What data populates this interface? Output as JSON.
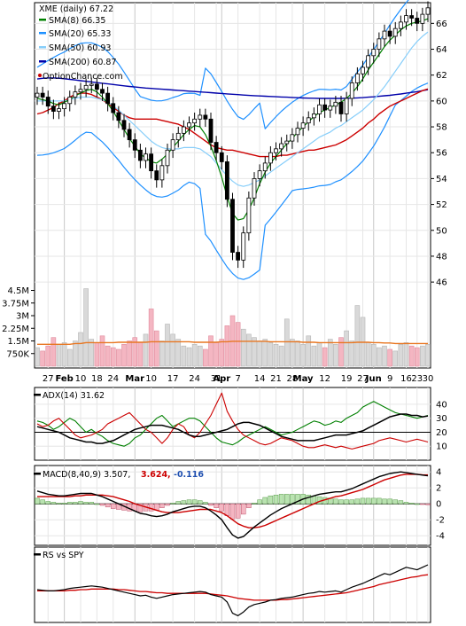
{
  "chart_data": {
    "type": "line",
    "main": {
      "title": "XME (daily) 67.22",
      "watermark": "OptionChance.com",
      "legend": [
        {
          "label": "SMA(8) 66.35",
          "color": "#008000"
        },
        {
          "label": "SMA(20) 65.33",
          "color": "#1e90ff"
        },
        {
          "label": "SMA(50) 60.93",
          "color": "#87cefa"
        },
        {
          "label": "SMA(200) 60.87",
          "color": "#0000aa"
        }
      ],
      "y_ticks": [
        "66",
        "64",
        "62",
        "60",
        "58",
        "56",
        "54",
        "52",
        "50",
        "48",
        "46"
      ],
      "ylim": [
        44.5,
        67.6
      ],
      "close": [
        60.6,
        60.3,
        59.6,
        59.2,
        59.4,
        59.8,
        60.3,
        60.7,
        60.9,
        61.2,
        61.3,
        60.9,
        60.6,
        59.8,
        59.1,
        58.5,
        57.8,
        57.0,
        56.2,
        55.4,
        55.9,
        54.6,
        53.9,
        55.0,
        56.2,
        57.0,
        57.5,
        58.0,
        58.3,
        58.6,
        58.9,
        58.6,
        56.8,
        56.0,
        55.3,
        52.4,
        48.3,
        47.7,
        49.8,
        52.5,
        54.0,
        54.6,
        55.2,
        56.0,
        56.3,
        56.7,
        56.9,
        57.4,
        57.9,
        58.3,
        58.7,
        59.0,
        59.7,
        59.3,
        59.6,
        59.9,
        59.0,
        60.2,
        61.4,
        62.1,
        62.6,
        63.5,
        64.0,
        64.8,
        65.4,
        65.0,
        65.6,
        66.1,
        66.6,
        66.4,
        66.0,
        66.7,
        67.2
      ],
      "sma8": [
        60.2,
        60.1,
        60.0,
        59.8,
        59.7,
        59.9,
        60.1,
        60.4,
        60.6,
        60.8,
        60.9,
        60.7,
        60.3,
        59.8,
        59.2,
        58.5,
        57.8,
        57.1,
        56.5,
        55.9,
        55.6,
        55.3,
        55.2,
        55.5,
        55.9,
        56.4,
        56.9,
        57.4,
        57.8,
        58.1,
        58.0,
        57.4,
        56.5,
        55.4,
        54.1,
        52.6,
        51.3,
        50.8,
        50.9,
        51.6,
        52.5,
        53.6,
        54.5,
        55.2,
        55.7,
        56.2,
        56.7,
        57.1,
        57.6,
        58.0,
        58.4,
        58.8,
        59.1,
        59.3,
        59.5,
        59.7,
        59.9,
        60.2,
        60.6,
        61.1,
        61.7,
        62.4,
        63.0,
        63.6,
        64.2,
        64.7,
        65.1,
        65.5,
        65.8,
        66.0,
        66.1,
        66.2,
        66.35
      ],
      "sma20": [
        60.0,
        60.0,
        60.0,
        60.0,
        60.0,
        60.0,
        60.1,
        60.2,
        60.3,
        60.3,
        60.3,
        60.2,
        60.1,
        59.9,
        59.6,
        59.3,
        58.9,
        58.5,
        58.1,
        57.7,
        57.3,
        56.9,
        56.6,
        56.4,
        56.3,
        56.3,
        56.3,
        56.4,
        56.4,
        56.4,
        56.3,
        56.0,
        55.7,
        55.2,
        54.7,
        54.2,
        53.8,
        53.5,
        53.4,
        53.5,
        53.7,
        53.9,
        54.2,
        54.5,
        54.8,
        55.1,
        55.4,
        55.7,
        56.0,
        56.3,
        56.6,
        56.9,
        57.2,
        57.4,
        57.6,
        57.9,
        58.1,
        58.4,
        58.7,
        59.0,
        59.3,
        59.7,
        60.1,
        60.6,
        61.1,
        61.7,
        62.3,
        62.9,
        63.5,
        64.1,
        64.6,
        65.0,
        65.33
      ],
      "sma50": [
        59.0,
        59.1,
        59.3,
        59.5,
        59.8,
        60.0,
        60.3,
        60.5,
        60.6,
        60.6,
        60.5,
        60.3,
        60.1,
        59.8,
        59.5,
        59.2,
        58.9,
        58.7,
        58.6,
        58.6,
        58.6,
        58.6,
        58.6,
        58.5,
        58.4,
        58.3,
        58.2,
        58.0,
        57.8,
        57.5,
        57.2,
        56.9,
        56.6,
        56.4,
        56.3,
        56.2,
        56.2,
        56.1,
        56.0,
        55.9,
        55.8,
        55.7,
        55.7,
        55.7,
        55.7,
        55.8,
        55.8,
        55.9,
        56.0,
        56.1,
        56.2,
        56.2,
        56.3,
        56.4,
        56.5,
        56.6,
        56.8,
        57.0,
        57.3,
        57.6,
        57.9,
        58.3,
        58.6,
        59.0,
        59.3,
        59.6,
        59.8,
        60.0,
        60.2,
        60.4,
        60.6,
        60.8,
        60.93
      ],
      "sma200": [
        61.7,
        61.75,
        61.78,
        61.78,
        61.76,
        61.72,
        61.67,
        61.62,
        61.57,
        61.52,
        61.47,
        61.42,
        61.37,
        61.32,
        61.27,
        61.22,
        61.17,
        61.12,
        61.08,
        61.04,
        61.0,
        60.97,
        60.94,
        60.91,
        60.88,
        60.85,
        60.82,
        60.79,
        60.76,
        60.73,
        60.7,
        60.67,
        60.64,
        60.61,
        60.58,
        60.55,
        60.52,
        60.49,
        60.46,
        60.43,
        60.41,
        60.39,
        60.37,
        60.35,
        60.33,
        60.31,
        60.29,
        60.27,
        60.25,
        60.23,
        60.22,
        60.21,
        60.2,
        60.2,
        60.2,
        60.2,
        60.2,
        60.21,
        60.22,
        60.24,
        60.26,
        60.29,
        60.32,
        60.36,
        60.4,
        60.44,
        60.49,
        60.54,
        60.6,
        60.66,
        60.72,
        60.8,
        60.87
      ]
    },
    "volume": {
      "y_ticks": [
        "4.5M",
        "3.75M",
        "3M",
        "2.25M",
        "1.5M",
        "750K"
      ],
      "ylim": [
        0,
        5000000
      ],
      "values": [
        1100000,
        900000,
        1200000,
        1700000,
        1300000,
        1400000,
        1000000,
        1500000,
        2000000,
        4600000,
        1600000,
        1400000,
        1800000,
        1200000,
        1100000,
        1000000,
        1300000,
        1500000,
        1700000,
        1400000,
        1900000,
        3400000,
        2100000,
        1500000,
        2500000,
        1900000,
        1600000,
        1200000,
        1100000,
        1300000,
        1200000,
        1000000,
        1800000,
        1400000,
        1600000,
        2400000,
        3000000,
        2600000,
        2200000,
        1900000,
        1700000,
        1500000,
        1600000,
        1400000,
        1300000,
        1200000,
        2800000,
        1600000,
        1500000,
        1300000,
        1800000,
        1200000,
        1400000,
        1100000,
        1600000,
        1300000,
        1700000,
        2100000,
        1500000,
        3600000,
        2900000,
        1400000,
        1300000,
        1100000,
        1200000,
        1000000,
        900000,
        1300000,
        1400000,
        1200000,
        1100000,
        1200000,
        1300000
      ],
      "avg": [
        1300000,
        1300000,
        1300000,
        1300000,
        1300000,
        1300000,
        1300000,
        1350000,
        1350000,
        1400000,
        1400000,
        1400000,
        1400000,
        1400000,
        1400000,
        1420000,
        1420000,
        1420000,
        1420000,
        1420000,
        1420000,
        1450000,
        1450000,
        1450000,
        1450000,
        1450000,
        1450000,
        1450000,
        1450000,
        1420000,
        1420000,
        1420000,
        1420000,
        1420000,
        1450000,
        1450000,
        1480000,
        1480000,
        1480000,
        1480000,
        1480000,
        1480000,
        1480000,
        1450000,
        1450000,
        1450000,
        1450000,
        1450000,
        1450000,
        1420000,
        1420000,
        1420000,
        1400000,
        1400000,
        1400000,
        1400000,
        1400000,
        1400000,
        1400000,
        1420000,
        1420000,
        1420000,
        1400000,
        1400000,
        1380000,
        1380000,
        1350000,
        1350000,
        1350000,
        1350000,
        1350000,
        1350000,
        1350000
      ]
    },
    "x_ticks": [
      {
        "i": 2,
        "label": "27",
        "bold": false
      },
      {
        "i": 5,
        "label": "Feb",
        "bold": true
      },
      {
        "i": 8,
        "label": "10",
        "bold": false
      },
      {
        "i": 11,
        "label": "18",
        "bold": false
      },
      {
        "i": 14,
        "label": "24",
        "bold": false
      },
      {
        "i": 18,
        "label": "Mar",
        "bold": true
      },
      {
        "i": 21,
        "label": "10",
        "bold": false
      },
      {
        "i": 25,
        "label": "17",
        "bold": false
      },
      {
        "i": 29,
        "label": "24",
        "bold": false
      },
      {
        "i": 33,
        "label": "31",
        "bold": false
      },
      {
        "i": 34,
        "label": "Apr",
        "bold": true
      },
      {
        "i": 37,
        "label": "7",
        "bold": false
      },
      {
        "i": 41,
        "label": "14",
        "bold": false
      },
      {
        "i": 44,
        "label": "21",
        "bold": false
      },
      {
        "i": 47,
        "label": "28",
        "bold": false
      },
      {
        "i": 49,
        "label": "May",
        "bold": true
      },
      {
        "i": 53,
        "label": "12",
        "bold": false
      },
      {
        "i": 57,
        "label": "19",
        "bold": false
      },
      {
        "i": 60,
        "label": "27",
        "bold": false
      },
      {
        "i": 62,
        "label": "Jun",
        "bold": true
      },
      {
        "i": 65,
        "label": "9",
        "bold": false
      },
      {
        "i": 68,
        "label": "16",
        "bold": false
      },
      {
        "i": 70,
        "label": "23",
        "bold": false
      },
      {
        "i": 72,
        "label": "30",
        "bold": false
      }
    ],
    "adx": {
      "label": "ADX(14) 31.62",
      "y_ticks": [
        "40",
        "30",
        "20",
        "10"
      ],
      "ylim": [
        0,
        52
      ],
      "adx": [
        24,
        23,
        22,
        21,
        20,
        18,
        16,
        15,
        14,
        13,
        13,
        12,
        12,
        13,
        14,
        16,
        18,
        20,
        22,
        23,
        24,
        25,
        25,
        25,
        24,
        23,
        22,
        20,
        18,
        17,
        17,
        18,
        19,
        20,
        21,
        22,
        24,
        26,
        27,
        27,
        26,
        25,
        23,
        21,
        19,
        17,
        16,
        15,
        14,
        14,
        14,
        14,
        15,
        16,
        17,
        18,
        18,
        18,
        19,
        20,
        21,
        23,
        25,
        27,
        29,
        31,
        32,
        33,
        33,
        32,
        32,
        31,
        31.62
      ],
      "dip": [
        28,
        27,
        25,
        22,
        24,
        27,
        30,
        28,
        24,
        20,
        22,
        19,
        17,
        14,
        12,
        11,
        10,
        12,
        16,
        18,
        22,
        26,
        30,
        32,
        28,
        24,
        26,
        28,
        30,
        30,
        28,
        24,
        20,
        16,
        13,
        12,
        11,
        13,
        16,
        18,
        20,
        22,
        24,
        22,
        20,
        18,
        19,
        20,
        22,
        24,
        26,
        28,
        27,
        25,
        26,
        28,
        27,
        30,
        32,
        34,
        38,
        40,
        42,
        40,
        38,
        36,
        34,
        33,
        32,
        31,
        30,
        31,
        32
      ],
      "dim": [
        26,
        24,
        25,
        28,
        30,
        26,
        22,
        18,
        16,
        17,
        18,
        20,
        22,
        26,
        28,
        30,
        32,
        34,
        30,
        26,
        22,
        20,
        16,
        12,
        16,
        22,
        26,
        24,
        18,
        16,
        20,
        26,
        32,
        40,
        48,
        35,
        28,
        22,
        18,
        16,
        14,
        12,
        11,
        12,
        14,
        16,
        15,
        14,
        12,
        10,
        9,
        9,
        10,
        11,
        10,
        9,
        10,
        9,
        8,
        9,
        10,
        11,
        12,
        14,
        15,
        16,
        15,
        14,
        13,
        14,
        15,
        14,
        13
      ]
    },
    "macd": {
      "label": "MACD(8,40,9) 3.507,",
      "signal_label": "3.624,",
      "hist_label": "-0.116",
      "y_ticks": [
        "4",
        "2",
        "0",
        "-2",
        "-4"
      ],
      "ylim": [
        -5.2,
        4.8
      ],
      "macd": [
        1.6,
        1.4,
        1.2,
        1.1,
        1.0,
        1.0,
        1.1,
        1.2,
        1.3,
        1.3,
        1.3,
        1.1,
        0.9,
        0.6,
        0.3,
        0.0,
        -0.3,
        -0.6,
        -0.9,
        -1.2,
        -1.3,
        -1.5,
        -1.6,
        -1.5,
        -1.3,
        -1.0,
        -0.8,
        -0.6,
        -0.4,
        -0.3,
        -0.3,
        -0.5,
        -0.9,
        -1.4,
        -2.0,
        -3.0,
        -3.9,
        -4.3,
        -4.1,
        -3.5,
        -2.9,
        -2.4,
        -1.9,
        -1.4,
        -1.0,
        -0.6,
        -0.3,
        0.0,
        0.3,
        0.6,
        0.8,
        1.0,
        1.2,
        1.3,
        1.4,
        1.5,
        1.5,
        1.7,
        1.9,
        2.2,
        2.5,
        2.8,
        3.1,
        3.4,
        3.6,
        3.8,
        3.9,
        4.0,
        3.9,
        3.8,
        3.7,
        3.6,
        3.507
      ],
      "signal": [
        0.9,
        0.9,
        0.9,
        0.9,
        0.9,
        0.9,
        0.9,
        1.0,
        1.0,
        1.1,
        1.1,
        1.1,
        1.1,
        1.0,
        0.9,
        0.7,
        0.5,
        0.3,
        0.0,
        -0.2,
        -0.4,
        -0.6,
        -0.8,
        -1.0,
        -1.1,
        -1.1,
        -1.1,
        -1.0,
        -0.9,
        -0.8,
        -0.7,
        -0.7,
        -0.7,
        -0.9,
        -1.1,
        -1.5,
        -2.0,
        -2.5,
        -2.8,
        -3.0,
        -3.0,
        -2.9,
        -2.7,
        -2.4,
        -2.1,
        -1.8,
        -1.5,
        -1.2,
        -0.9,
        -0.6,
        -0.3,
        0.0,
        0.3,
        0.5,
        0.7,
        0.9,
        1.0,
        1.2,
        1.4,
        1.6,
        1.8,
        2.1,
        2.4,
        2.7,
        3.0,
        3.2,
        3.4,
        3.6,
        3.7,
        3.7,
        3.7,
        3.65,
        3.624
      ]
    },
    "rs": {
      "label": "RS vs SPY",
      "rs": [
        0.5,
        0.49,
        0.48,
        0.48,
        0.49,
        0.5,
        0.52,
        0.53,
        0.54,
        0.55,
        0.56,
        0.55,
        0.54,
        0.52,
        0.5,
        0.48,
        0.46,
        0.44,
        0.42,
        0.4,
        0.41,
        0.38,
        0.36,
        0.38,
        0.4,
        0.42,
        0.43,
        0.44,
        0.45,
        0.46,
        0.47,
        0.46,
        0.42,
        0.4,
        0.38,
        0.3,
        0.12,
        0.08,
        0.14,
        0.22,
        0.26,
        0.28,
        0.3,
        0.33,
        0.34,
        0.36,
        0.37,
        0.38,
        0.4,
        0.42,
        0.44,
        0.45,
        0.47,
        0.46,
        0.47,
        0.48,
        0.46,
        0.5,
        0.54,
        0.57,
        0.6,
        0.64,
        0.68,
        0.72,
        0.76,
        0.74,
        0.78,
        0.82,
        0.86,
        0.84,
        0.82,
        0.86,
        0.9
      ],
      "rs_ma": [
        0.48,
        0.48,
        0.48,
        0.48,
        0.48,
        0.48,
        0.49,
        0.49,
        0.5,
        0.5,
        0.51,
        0.51,
        0.51,
        0.51,
        0.51,
        0.5,
        0.5,
        0.49,
        0.48,
        0.47,
        0.47,
        0.46,
        0.45,
        0.45,
        0.44,
        0.44,
        0.44,
        0.44,
        0.44,
        0.44,
        0.44,
        0.44,
        0.43,
        0.42,
        0.41,
        0.4,
        0.38,
        0.36,
        0.35,
        0.34,
        0.33,
        0.33,
        0.33,
        0.33,
        0.33,
        0.34,
        0.34,
        0.35,
        0.36,
        0.37,
        0.38,
        0.39,
        0.4,
        0.41,
        0.42,
        0.43,
        0.44,
        0.45,
        0.47,
        0.49,
        0.51,
        0.53,
        0.55,
        0.58,
        0.6,
        0.62,
        0.64,
        0.66,
        0.68,
        0.7,
        0.71,
        0.73,
        0.74
      ]
    }
  }
}
